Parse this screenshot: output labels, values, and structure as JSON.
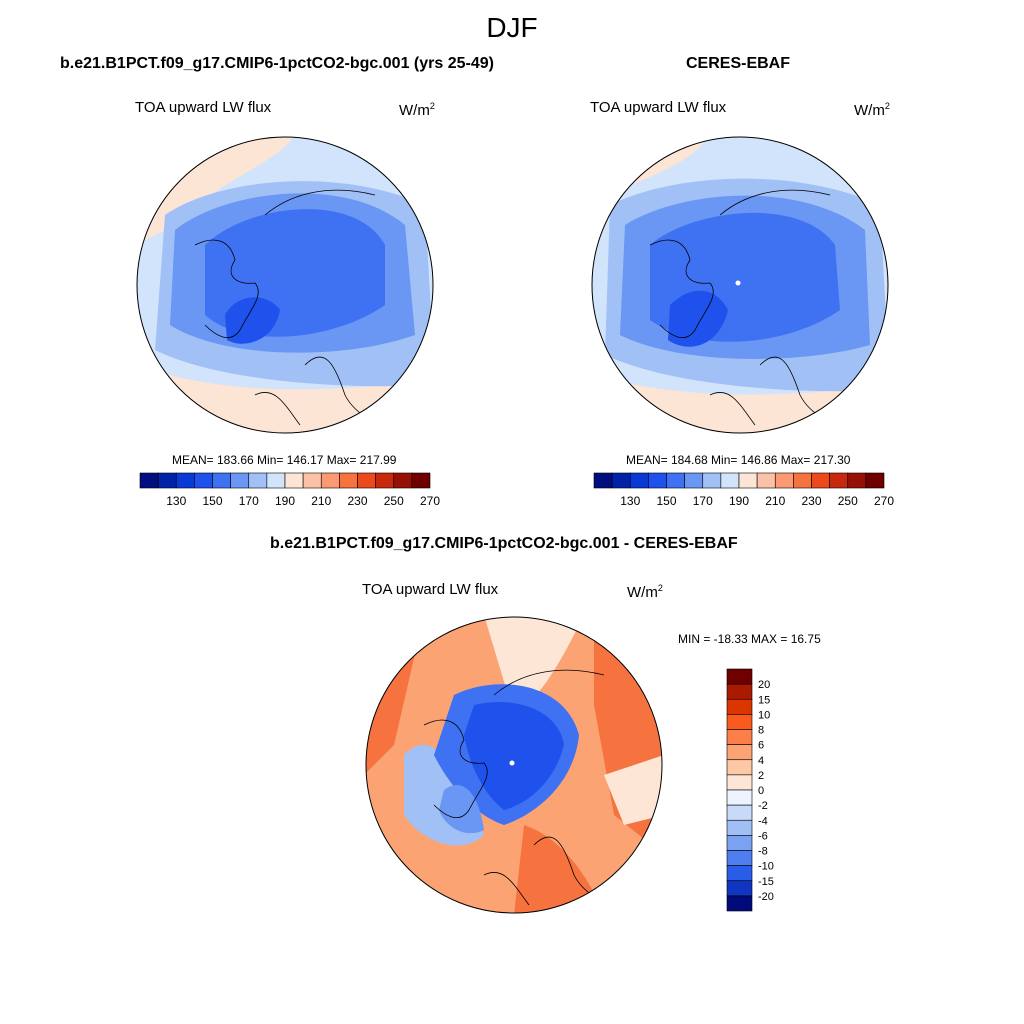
{
  "title": "DJF",
  "panels": {
    "model": {
      "title": "b.e21.B1PCT.f09_g17.CMIP6-1pctCO2-bgc.001 (yrs 25-49)",
      "variable": "TOA upward LW flux",
      "units_base": "W/m",
      "units_exp": "2",
      "stats": "MEAN= 183.66  Min= 146.17  Max= 217.99"
    },
    "obs": {
      "title": "CERES-EBAF",
      "variable": "TOA upward LW flux",
      "units_base": "W/m",
      "units_exp": "2",
      "stats": "MEAN= 184.68  Min= 146.86  Max= 217.30"
    },
    "diff": {
      "title": "b.e21.B1PCT.f09_g17.CMIP6-1pctCO2-bgc.001 - CERES-EBAF",
      "variable": "TOA upward LW flux",
      "units_base": "W/m",
      "units_exp": "2",
      "stats": "MIN = -18.33 MAX =  16.75"
    }
  },
  "colorbar_abs": {
    "colors": [
      "#000e80",
      "#0022a6",
      "#0a3ad6",
      "#1f52ec",
      "#3f72f2",
      "#6a96f4",
      "#a0c0f6",
      "#d2e4fb",
      "#fde5d6",
      "#fcc2a8",
      "#fb9a72",
      "#f6723f",
      "#ec4a1c",
      "#c8280c",
      "#961006",
      "#700000"
    ],
    "labels": [
      "130",
      "150",
      "170",
      "190",
      "210",
      "230",
      "250",
      "270"
    ]
  },
  "colorbar_diff": {
    "colors": [
      "#700000",
      "#aa1a00",
      "#dc3600",
      "#fa5a1c",
      "#fc7e48",
      "#fca374",
      "#fdc8a6",
      "#fde6d6",
      "#eef4ff",
      "#c8daf8",
      "#a0bff4",
      "#7aa2f0",
      "#4e7ef0",
      "#2a5cea",
      "#1035c0",
      "#000a78"
    ],
    "labels": [
      "20",
      "15",
      "10",
      "8",
      "6",
      "4",
      "2",
      "0",
      "-2",
      "-4",
      "-6",
      "-8",
      "-10",
      "-15",
      "-20"
    ]
  },
  "map_palette": {
    "deep_blue": "#1f52ec",
    "mid_blue": "#3f72f2",
    "light_blue": "#6a96f4",
    "pale_blue": "#a0c0f6",
    "very_pale_blue": "#d2e4fb",
    "pale_orange": "#fde5d6",
    "diff_warm": "#f6723f",
    "diff_light_warm": "#fca374",
    "diff_pale": "#fde6d6"
  }
}
